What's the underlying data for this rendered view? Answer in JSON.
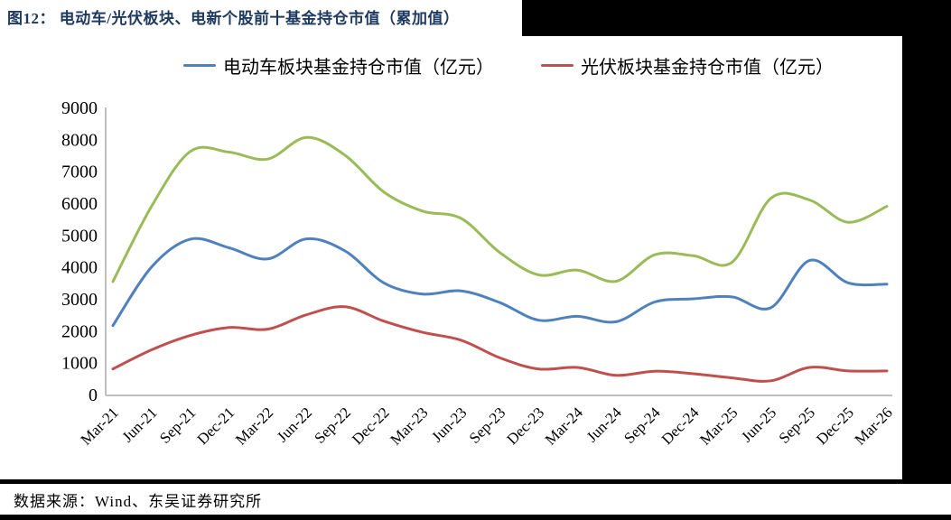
{
  "figure": {
    "title": "图12： 电动车/光伏板块、电新个股前十基金持仓市值（累加值）",
    "source": "数据来源：Wind、东吴证券研究所"
  },
  "colors": {
    "title_navy": "#1F3A60",
    "blue": "#4F81BD",
    "red": "#C0504D",
    "green": "#9BBB59",
    "axis_gray": "#BFBFBF",
    "text_black": "#000000"
  },
  "legend": [
    {
      "label": "电动车板块基金持仓市值（亿元）",
      "color": "#4F81BD"
    },
    {
      "label": "光伏板块基金持仓市值（亿元）",
      "color": "#C0504D"
    }
  ],
  "chart_data": {
    "type": "line",
    "smooth": true,
    "grid": false,
    "legend_position": "top",
    "ylim": [
      0,
      9000
    ],
    "ytick_step": 1000,
    "yticks": [
      0,
      1000,
      2000,
      3000,
      4000,
      5000,
      6000,
      7000,
      8000,
      9000
    ],
    "categories": [
      "Mar-21",
      "Jun-21",
      "Sep-21",
      "Dec-21",
      "Mar-22",
      "Jun-22",
      "Sep-22",
      "Dec-22",
      "Mar-23",
      "Jun-23",
      "Sep-23",
      "Dec-23",
      "Mar-24",
      "Jun-24",
      "Sep-24",
      "Dec-24",
      "Mar-25",
      "Jun-25",
      "Sep-25",
      "Dec-25",
      "Mar-26"
    ],
    "series": [
      {
        "name": "unlabeled-green-series",
        "color": "#9BBB59",
        "values": [
          3540,
          5900,
          7620,
          7600,
          7380,
          8060,
          7500,
          6350,
          5750,
          5520,
          4450,
          3750,
          3900,
          3550,
          4380,
          4350,
          4150,
          6150,
          6100,
          5400,
          5900
        ]
      },
      {
        "name": "电动车板块基金持仓市值（亿元）",
        "color": "#4F81BD",
        "values": [
          2160,
          4000,
          4870,
          4600,
          4250,
          4880,
          4500,
          3500,
          3150,
          3250,
          2880,
          2330,
          2450,
          2280,
          2900,
          3000,
          3060,
          2720,
          4200,
          3500,
          3460
        ]
      },
      {
        "name": "光伏板块基金持仓市值（亿元）",
        "color": "#C0504D",
        "values": [
          800,
          1400,
          1850,
          2100,
          2050,
          2500,
          2750,
          2300,
          1950,
          1700,
          1150,
          800,
          850,
          600,
          730,
          650,
          520,
          430,
          850,
          740,
          740
        ]
      }
    ]
  }
}
